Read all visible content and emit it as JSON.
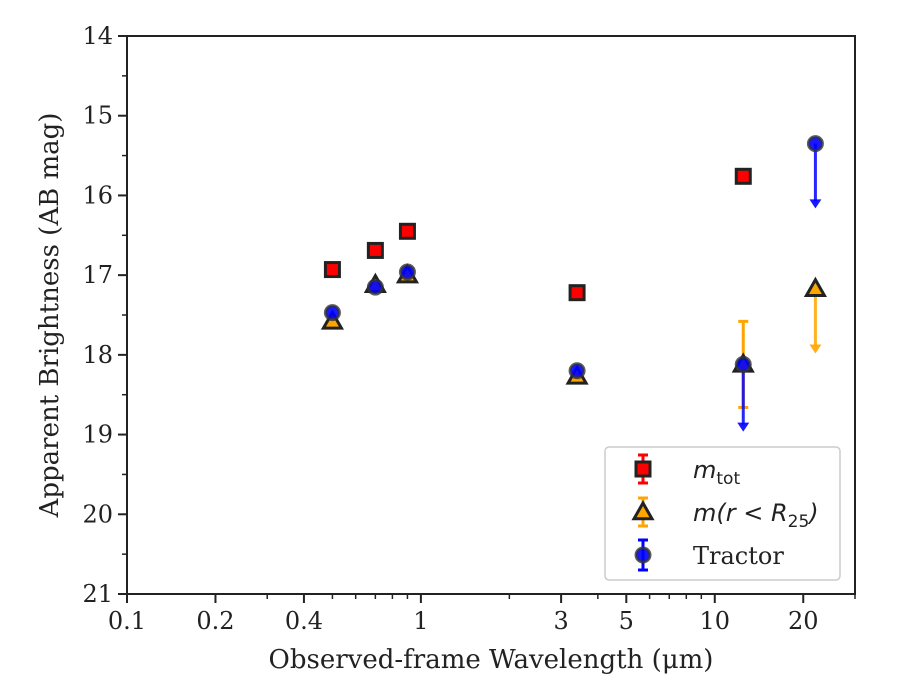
{
  "chart_data": {
    "type": "scatter",
    "xlabel": "Observed-frame Wavelength (μm)",
    "ylabel": "Apparent Brightness (AB mag)",
    "xscale": "log",
    "xlim": [
      0.1,
      30
    ],
    "ylim": [
      21,
      14
    ],
    "y_inverted": true,
    "x_ticks": [
      0.1,
      0.2,
      0.4,
      1,
      3,
      5,
      10,
      20
    ],
    "x_tick_labels": [
      "0.1",
      "0.2",
      "0.4",
      "1",
      "3",
      "5",
      "10",
      "20"
    ],
    "y_ticks": [
      14,
      15,
      16,
      17,
      18,
      19,
      20,
      21
    ],
    "y_tick_labels": [
      "14",
      "15",
      "16",
      "17",
      "18",
      "19",
      "20",
      "21"
    ],
    "grid": false,
    "legend_position": "lower right",
    "series": [
      {
        "name": "m_tot",
        "legend_parts": [
          "m",
          "tot",
          ""
        ],
        "marker": "square",
        "color": "#ff0000",
        "edge": "#222222",
        "points": [
          {
            "x": 0.5,
            "y": 16.93
          },
          {
            "x": 0.7,
            "y": 16.69
          },
          {
            "x": 0.9,
            "y": 16.45
          },
          {
            "x": 3.4,
            "y": 17.22
          },
          {
            "x": 12.5,
            "y": 15.76
          }
        ],
        "upper_limits": []
      },
      {
        "name": "m(r < R_25)",
        "legend_parts": [
          "m(r < R",
          "25",
          ")"
        ],
        "marker": "triangle",
        "color": "#ffa500",
        "edge": "#222222",
        "points": [
          {
            "x": 0.5,
            "y": 17.58
          },
          {
            "x": 0.7,
            "y": 17.12
          },
          {
            "x": 0.9,
            "y": 17.0
          },
          {
            "x": 3.4,
            "y": 18.27
          },
          {
            "x": 12.5,
            "y": 18.12,
            "yerr": 0.54
          }
        ],
        "upper_limits": [
          {
            "x": 22.0,
            "y": 17.17,
            "arrow_to": 17.97
          }
        ]
      },
      {
        "name": "Tractor",
        "legend_parts": [
          "Tractor",
          "",
          ""
        ],
        "marker": "circle",
        "color": "#0000ff",
        "edge": "#333333",
        "points": [
          {
            "x": 0.5,
            "y": 17.47
          },
          {
            "x": 0.7,
            "y": 17.15
          },
          {
            "x": 0.9,
            "y": 16.96
          },
          {
            "x": 3.4,
            "y": 18.2
          }
        ],
        "upper_limits": [
          {
            "x": 12.5,
            "y": 18.12,
            "arrow_to": 18.95
          },
          {
            "x": 22.0,
            "y": 15.35,
            "arrow_to": 16.15
          }
        ]
      }
    ]
  }
}
